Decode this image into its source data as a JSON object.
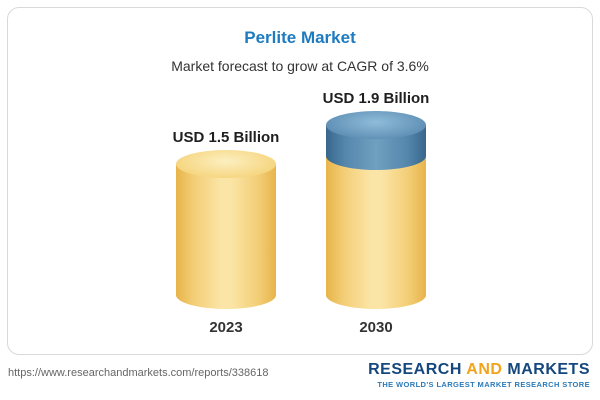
{
  "chart_data": {
    "type": "bar",
    "title": "Perlite Market",
    "subtitle": "Market forecast to grow at CAGR of 3.6%",
    "categories": [
      "2023",
      "2030"
    ],
    "values": [
      1.5,
      1.9
    ],
    "unit": "USD Billion",
    "data_labels": [
      "USD 1.5 Billion",
      "USD 1.9 Billion"
    ],
    "cagr": "3.6%",
    "legend_position": "none",
    "grid": false,
    "bar_color": "#F2C96C",
    "growth_segment_color": "#5688AE"
  },
  "footer": {
    "url": "https://www.researchandmarkets.com/reports/338618",
    "logo": {
      "part1": "RESEARCH",
      "part2": "AND",
      "part3": "MARKETS",
      "tagline": "THE WORLD'S LARGEST MARKET RESEARCH STORE"
    }
  },
  "colors": {
    "title": "#1e7bc0",
    "card_border": "#d9d9d9"
  }
}
